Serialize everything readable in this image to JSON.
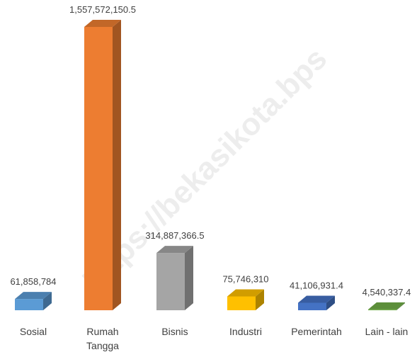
{
  "chart_data": {
    "type": "bar3d",
    "watermark": "https://bekasikota.bps",
    "categories": [
      "Sosial",
      "Rumah Tangga",
      "Bisnis",
      "Industri",
      "Pemerintah",
      "Lain - lain"
    ],
    "values": [
      61858784,
      1557572150.5,
      314887366.5,
      75746310,
      41106931.4,
      4540337.4
    ],
    "value_labels": [
      "61,858,784",
      "1,557,572,150.5",
      "314,887,366.5",
      "75,746,310",
      "41,106,931.4",
      "4,540,337.4"
    ],
    "colors": [
      "#5b9bd5",
      "#ed7d31",
      "#a5a5a5",
      "#ffc000",
      "#4472c4",
      "#70ad47"
    ]
  }
}
